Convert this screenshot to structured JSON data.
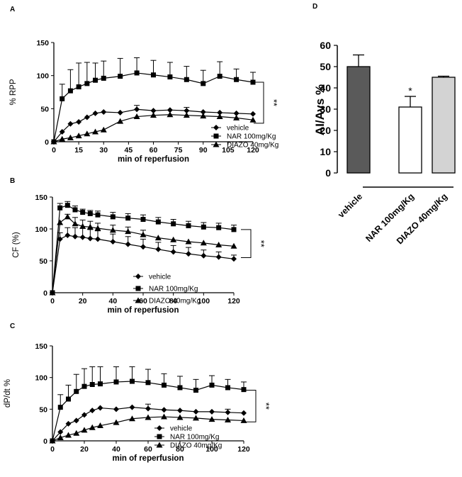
{
  "chart_data": [
    {
      "id": "A",
      "type": "line",
      "panel_label": "A",
      "xlabel": "min of reperfusion",
      "ylabel": "% RPP",
      "xlim": [
        0,
        120
      ],
      "ylim": [
        0,
        150
      ],
      "xticks": [
        0,
        15,
        30,
        45,
        60,
        75,
        90,
        105,
        120
      ],
      "yticks": [
        0,
        50,
        100,
        150
      ],
      "significance": "**",
      "series": [
        {
          "name": "vehicle",
          "marker": "diamond",
          "x": [
            0,
            5,
            10,
            15,
            20,
            25,
            30,
            40,
            50,
            60,
            70,
            80,
            90,
            100,
            110,
            120
          ],
          "y": [
            0,
            15,
            27,
            30,
            37,
            43,
            45,
            44,
            49,
            47,
            48,
            47,
            45,
            44,
            43,
            42
          ],
          "err": [
            0,
            0,
            0,
            0,
            0,
            0,
            0,
            0,
            6,
            0,
            0,
            5,
            0,
            0,
            0,
            0
          ]
        },
        {
          "name": "NAR 100mg/Kg",
          "marker": "square",
          "x": [
            0,
            5,
            10,
            15,
            20,
            25,
            30,
            40,
            50,
            60,
            70,
            80,
            90,
            100,
            110,
            120
          ],
          "y": [
            0,
            65,
            77,
            83,
            88,
            93,
            96,
            99,
            104,
            101,
            98,
            94,
            88,
            99,
            94,
            90
          ],
          "err": [
            0,
            22,
            32,
            36,
            32,
            26,
            26,
            27,
            23,
            22,
            22,
            20,
            20,
            22,
            16,
            15
          ]
        },
        {
          "name": "DIAZO 40mg/Kg",
          "marker": "triangle",
          "x": [
            0,
            5,
            10,
            15,
            20,
            25,
            30,
            40,
            50,
            60,
            70,
            80,
            90,
            100,
            110,
            120
          ],
          "y": [
            0,
            4,
            6,
            9,
            12,
            15,
            18,
            31,
            38,
            40,
            41,
            40,
            39,
            38,
            36,
            33
          ],
          "err": [
            0,
            0,
            0,
            0,
            0,
            0,
            0,
            0,
            0,
            0,
            0,
            0,
            0,
            0,
            0,
            0
          ]
        }
      ]
    },
    {
      "id": "B",
      "type": "line",
      "panel_label": "B",
      "xlabel": "min of reperfusion",
      "ylabel": "CF (%)",
      "xlim": [
        0,
        120
      ],
      "ylim": [
        0,
        150
      ],
      "xticks": [
        0,
        20,
        40,
        60,
        80,
        100,
        120
      ],
      "yticks": [
        0,
        50,
        100,
        150
      ],
      "significance": "**",
      "series": [
        {
          "name": "vehicle",
          "marker": "diamond",
          "x": [
            0,
            5,
            10,
            15,
            20,
            25,
            30,
            40,
            50,
            60,
            70,
            80,
            90,
            100,
            110,
            120
          ],
          "y": [
            0,
            84,
            90,
            88,
            87,
            85,
            84,
            80,
            76,
            72,
            68,
            64,
            61,
            58,
            56,
            53
          ],
          "err": [
            0,
            10,
            12,
            14,
            14,
            14,
            13,
            12,
            12,
            12,
            11,
            10,
            10,
            9,
            8,
            6
          ]
        },
        {
          "name": "NAR 100mg/Kg",
          "marker": "square",
          "x": [
            0,
            5,
            10,
            15,
            20,
            25,
            30,
            40,
            50,
            60,
            70,
            80,
            90,
            100,
            110,
            120
          ],
          "y": [
            0,
            133,
            137,
            130,
            126,
            124,
            122,
            119,
            117,
            115,
            111,
            108,
            105,
            103,
            102,
            99
          ],
          "err": [
            0,
            7,
            6,
            6,
            5,
            5,
            6,
            7,
            7,
            7,
            7,
            7,
            7,
            7,
            7,
            7
          ]
        },
        {
          "name": "DIAZO 40mg/Kg",
          "marker": "triangle",
          "x": [
            0,
            5,
            10,
            15,
            20,
            25,
            30,
            40,
            50,
            60,
            70,
            80,
            90,
            100,
            110,
            120
          ],
          "y": [
            0,
            110,
            119,
            108,
            104,
            103,
            101,
            98,
            96,
            91,
            86,
            83,
            80,
            78,
            75,
            73
          ],
          "err": [
            0,
            0,
            4,
            10,
            10,
            9,
            8,
            8,
            7,
            7,
            0,
            0,
            0,
            0,
            0,
            0
          ]
        }
      ]
    },
    {
      "id": "C",
      "type": "line",
      "panel_label": "C",
      "xlabel": "min of reperfusion",
      "ylabel": "dP/dt %",
      "xlim": [
        0,
        120
      ],
      "ylim": [
        0,
        150
      ],
      "xticks": [
        0,
        20,
        40,
        60,
        80,
        100,
        120
      ],
      "yticks": [
        0,
        50,
        100,
        150
      ],
      "significance": "**",
      "series": [
        {
          "name": "vehicle",
          "marker": "diamond",
          "x": [
            0,
            5,
            10,
            15,
            20,
            25,
            30,
            40,
            50,
            60,
            70,
            80,
            90,
            100,
            110,
            120
          ],
          "y": [
            0,
            14,
            27,
            32,
            41,
            48,
            52,
            50,
            53,
            51,
            49,
            48,
            46,
            46,
            45,
            44
          ],
          "err": [
            0,
            0,
            0,
            0,
            0,
            0,
            0,
            0,
            0,
            7,
            0,
            0,
            0,
            0,
            5,
            0
          ]
        },
        {
          "name": "NAR 100mg/Kg",
          "marker": "square",
          "x": [
            0,
            5,
            10,
            15,
            20,
            25,
            30,
            40,
            50,
            60,
            70,
            80,
            90,
            100,
            110,
            120
          ],
          "y": [
            0,
            53,
            66,
            78,
            86,
            89,
            90,
            93,
            94,
            92,
            88,
            84,
            80,
            88,
            84,
            81
          ],
          "err": [
            0,
            20,
            22,
            27,
            28,
            28,
            27,
            24,
            23,
            21,
            18,
            18,
            17,
            15,
            13,
            12
          ]
        },
        {
          "name": "DIAZO 40mg/Kg",
          "marker": "triangle",
          "x": [
            0,
            5,
            10,
            15,
            20,
            25,
            30,
            40,
            50,
            60,
            70,
            80,
            90,
            100,
            110,
            120
          ],
          "y": [
            0,
            5,
            9,
            12,
            17,
            21,
            24,
            29,
            35,
            37,
            38,
            37,
            36,
            34,
            33,
            32
          ],
          "err": [
            0,
            0,
            0,
            0,
            0,
            0,
            0,
            0,
            0,
            0,
            0,
            0,
            0,
            0,
            0,
            0
          ]
        }
      ]
    },
    {
      "id": "D",
      "type": "bar",
      "panel_label": "D",
      "ylabel": "AI/Avs %",
      "ylim": [
        0,
        60
      ],
      "yticks": [
        0,
        10,
        20,
        30,
        40,
        50,
        60
      ],
      "categories": [
        "vehicle",
        "NAR 100mg/Kg",
        "DIAZO 40mg/Kg"
      ],
      "values": [
        50,
        31,
        45
      ],
      "err": [
        5.5,
        5,
        0.5
      ],
      "fills": [
        "#5a5a5a",
        "#ffffff",
        "#d3d3d3"
      ],
      "annotations": [
        "",
        "*",
        ""
      ]
    }
  ]
}
